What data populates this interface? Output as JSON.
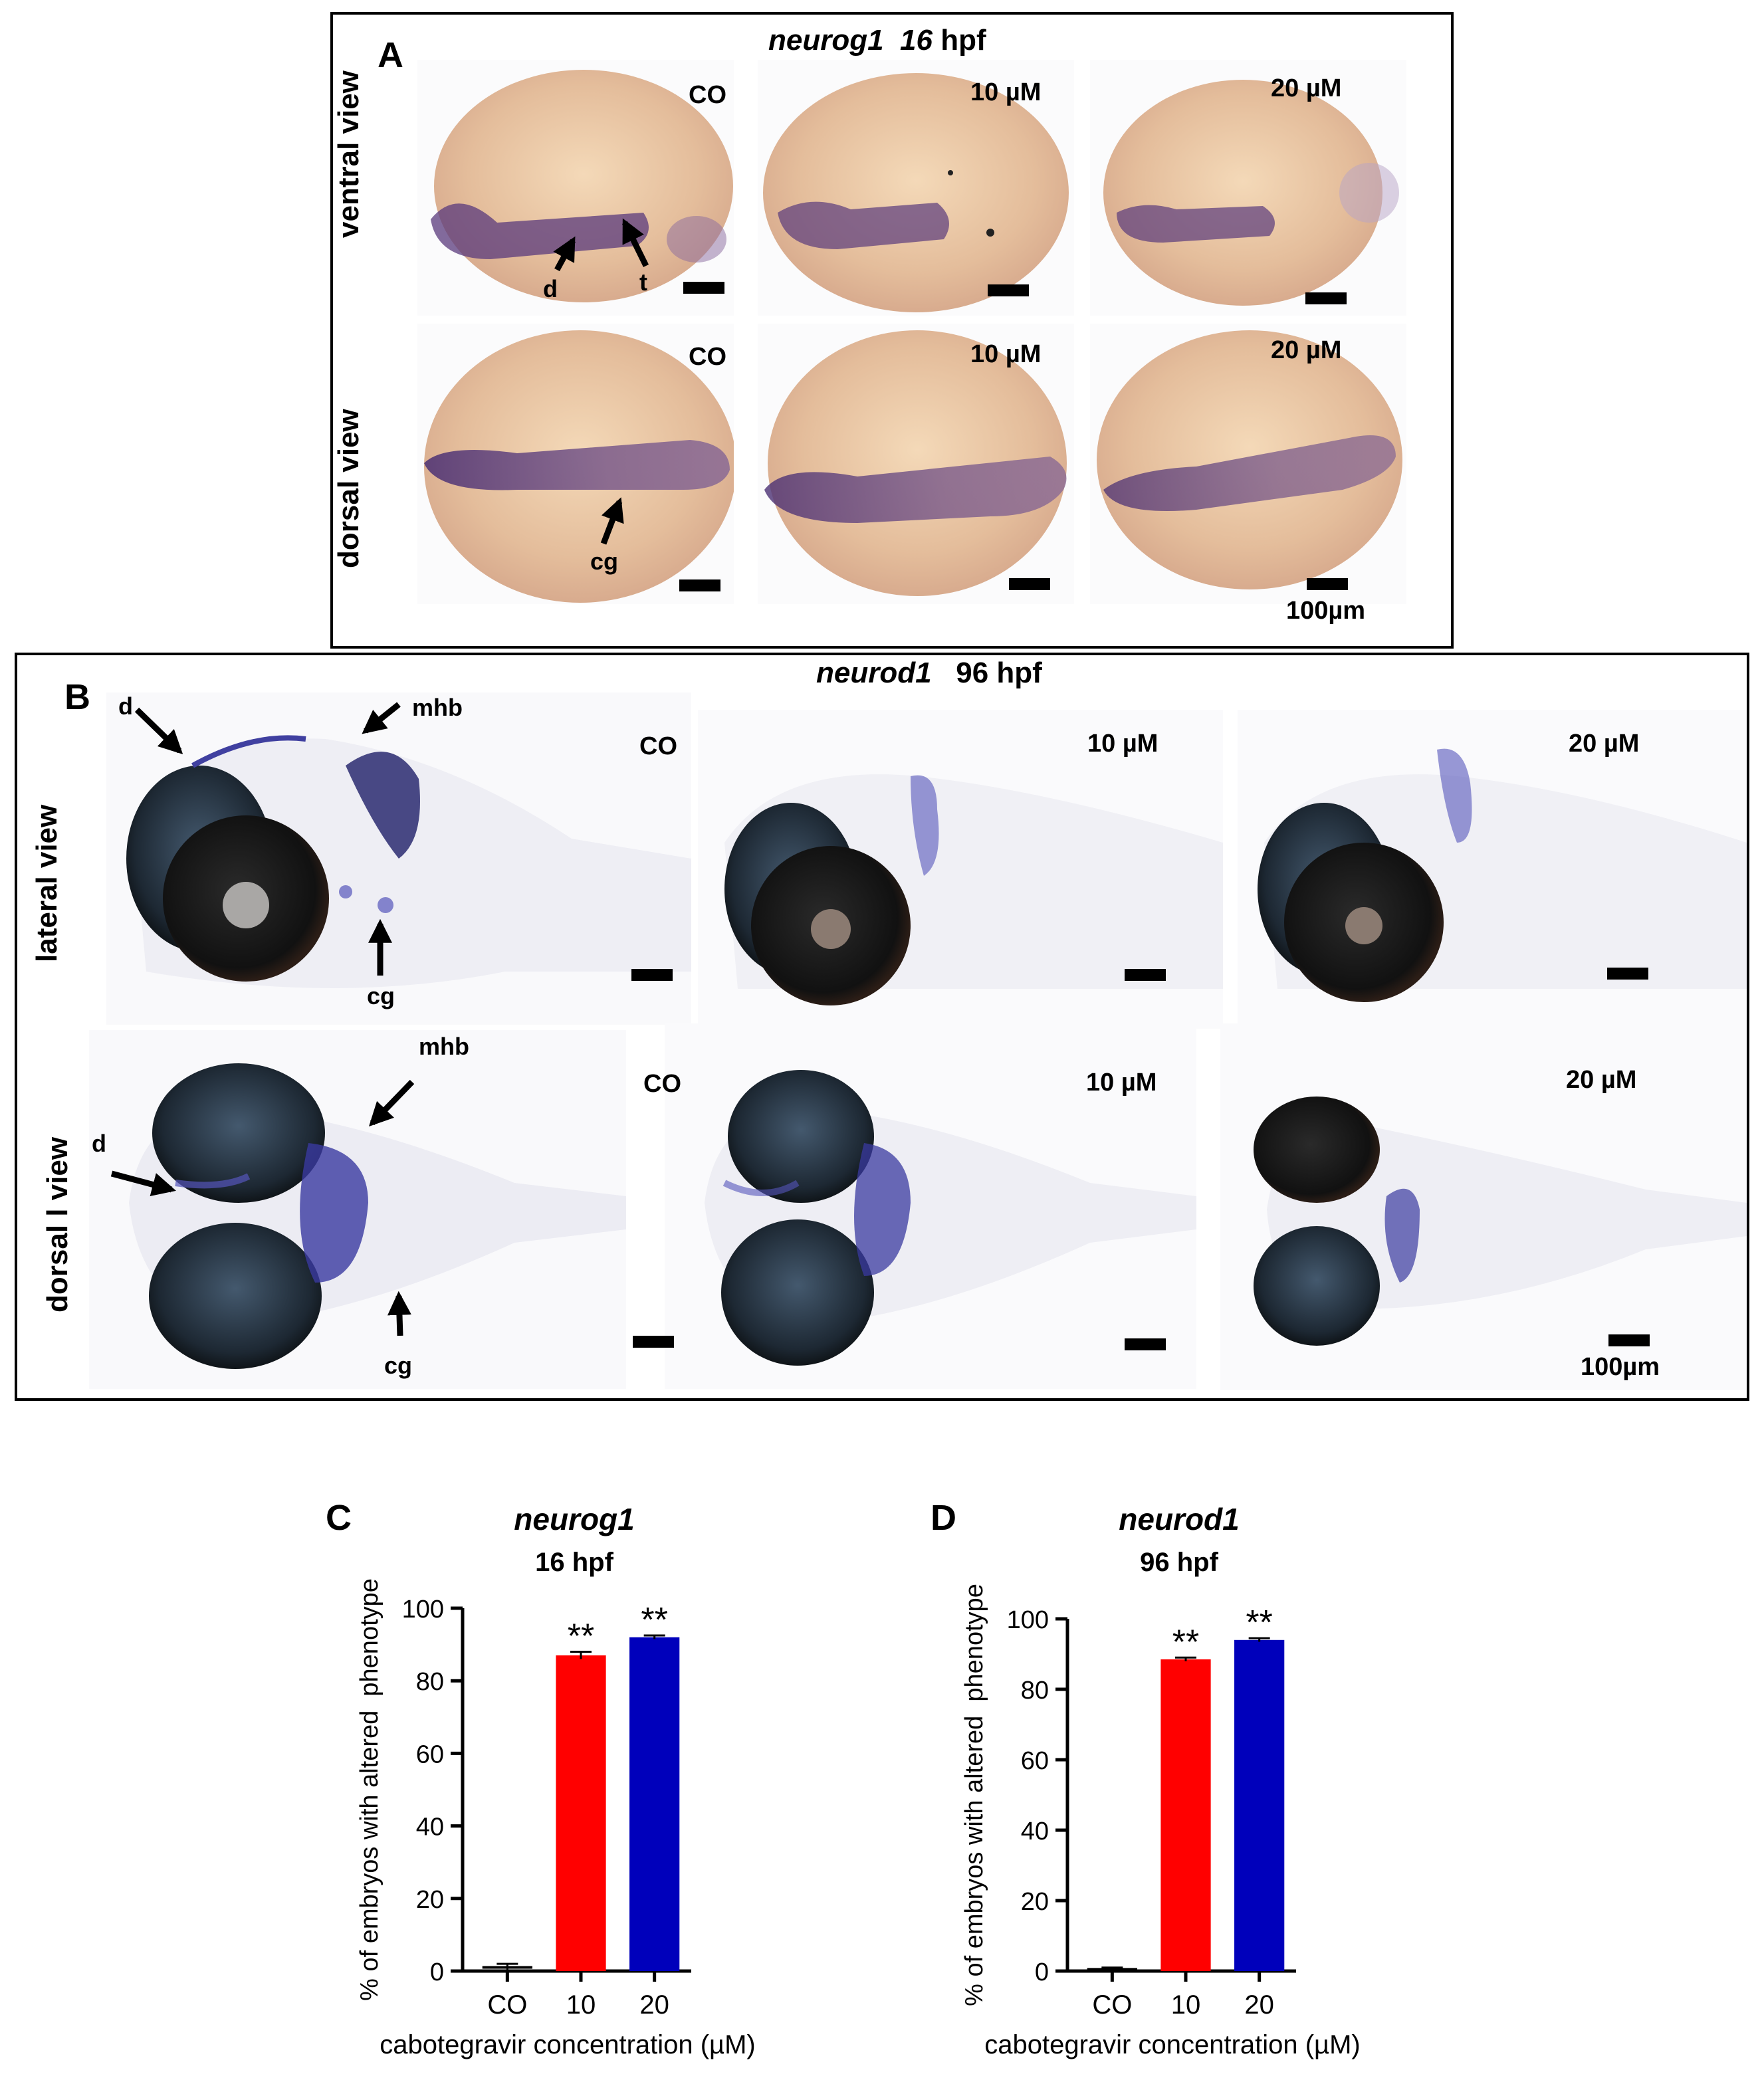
{
  "panelA": {
    "letter": "A",
    "gene": "neurog1",
    "stage_num": "16",
    "stage_unit": "hpf",
    "row_labels": [
      "ventral view",
      "dorsal view"
    ],
    "conditions": [
      "CO",
      "10 µM",
      "20 µM"
    ],
    "annotations": {
      "d": "d",
      "t": "t",
      "cg": "cg"
    },
    "scale_label": "100µm"
  },
  "panelB": {
    "letter": "B",
    "gene": "neurod1",
    "stage": "96 hpf",
    "row_labels": [
      "lateral view",
      "dorsal l view"
    ],
    "conditions": [
      "CO",
      "10 µM",
      "20 µM"
    ],
    "annotations": {
      "d": "d",
      "mhb": "mhb",
      "cg": "cg"
    },
    "scale_label": "100µm"
  },
  "chart_data": [
    {
      "type": "bar",
      "panel": "C",
      "title": "neurog1",
      "subtitle": "16 hpf",
      "categories": [
        "CO",
        "10",
        "20"
      ],
      "values": [
        1,
        87,
        92
      ],
      "errors": [
        1,
        1,
        0.5
      ],
      "significance": [
        "",
        "**",
        "**"
      ],
      "colors": [
        "#000000",
        "#ff0000",
        "#0000bb"
      ],
      "xlabel": "cabotegravir concentration (µM)",
      "ylabel": "% of embryos with altered  phenotype",
      "ylim": [
        0,
        100
      ],
      "yticks": [
        0,
        20,
        40,
        60,
        80,
        100
      ]
    },
    {
      "type": "bar",
      "panel": "D",
      "title": "neurod1",
      "subtitle": "96 hpf",
      "categories": [
        "CO",
        "10",
        "20"
      ],
      "values": [
        0.5,
        88.5,
        94
      ],
      "errors": [
        0.5,
        0.5,
        0.5
      ],
      "significance": [
        "",
        "**",
        "**"
      ],
      "colors": [
        "#000000",
        "#ff0000",
        "#0000bb"
      ],
      "xlabel": "cabotegravir concentration (µM)",
      "ylabel": "% of embryos with altered  phenotype",
      "ylim": [
        0,
        100
      ],
      "yticks": [
        0,
        20,
        40,
        60,
        80,
        100
      ]
    }
  ]
}
